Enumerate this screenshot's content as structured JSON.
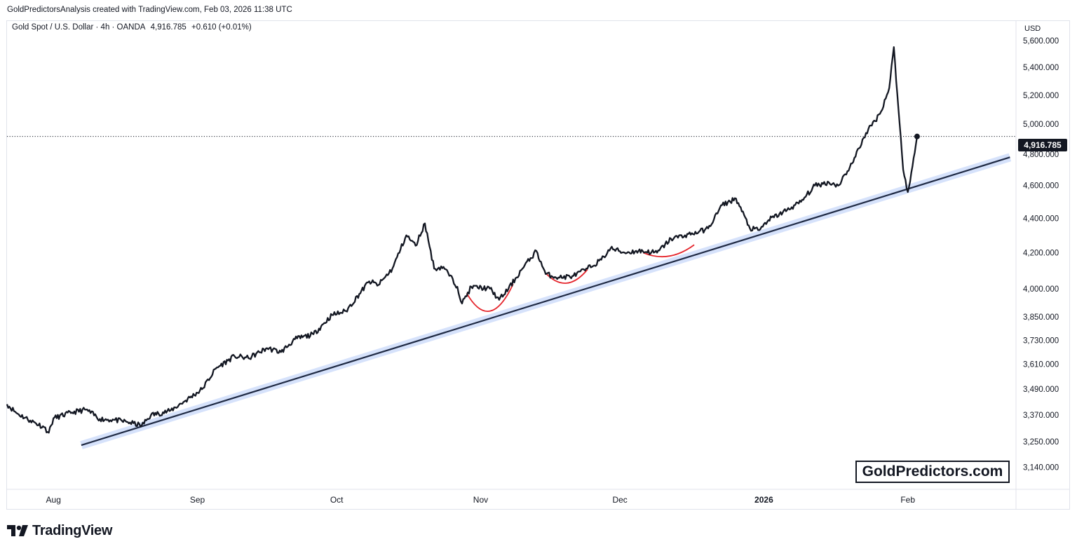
{
  "header": {
    "attribution": "GoldPredictorsAnalysis created with TradingView.com, Feb 03, 2026 11:38 UTC"
  },
  "legend": {
    "symbol": "Gold Spot / U.S. Dollar · 4h · OANDA",
    "last": "4,916.785",
    "change": "+0.610 (+0.01%)"
  },
  "currency": "USD",
  "last_price_label": "4,916.785",
  "watermark": "GoldPredictors.com",
  "footer": {
    "brand": "TradingView"
  },
  "colors": {
    "price_line": "#131722",
    "trend_line": "#1f2a44",
    "trend_band": "#d6e2fb",
    "arcs": "#e5262d"
  },
  "chart_data": {
    "type": "line",
    "title": "Gold Spot / U.S. Dollar · 4h · OANDA",
    "y_scale": "log",
    "ylim": [
      3050,
      5750
    ],
    "y_ticks": [
      "5,600.000",
      "5,400.000",
      "5,200.000",
      "5,000.000",
      "4,800.000",
      "4,600.000",
      "4,400.000",
      "4,200.000",
      "4,000.000",
      "3,850.000",
      "3,730.000",
      "3,610.000",
      "3,490.000",
      "3,370.000",
      "3,250.000",
      "3,140.000"
    ],
    "x_ticks": [
      "Aug",
      "Sep",
      "Oct",
      "Nov",
      "Dec",
      "2026",
      "Feb"
    ],
    "x_tick_dates": [
      "2025-08-01",
      "2025-09-01",
      "2025-10-01",
      "2025-11-01",
      "2025-12-01",
      "2026-01-01",
      "2026-02-01"
    ],
    "xlim": [
      "2025-07-22",
      "2026-02-24"
    ],
    "grid": false,
    "series": [
      {
        "type": "line",
        "points": [
          [
            "2025-07-22",
            3420
          ],
          [
            "2025-07-24",
            3380
          ],
          [
            "2025-07-27",
            3345
          ],
          [
            "2025-07-30",
            3315
          ],
          [
            "2025-07-31",
            3290
          ],
          [
            "2025-08-01",
            3355
          ],
          [
            "2025-08-05",
            3382
          ],
          [
            "2025-08-08",
            3395
          ],
          [
            "2025-08-11",
            3352
          ],
          [
            "2025-08-14",
            3348
          ],
          [
            "2025-08-17",
            3338
          ],
          [
            "2025-08-20",
            3322
          ],
          [
            "2025-08-22",
            3370
          ],
          [
            "2025-08-26",
            3388
          ],
          [
            "2025-08-29",
            3430
          ],
          [
            "2025-09-02",
            3490
          ],
          [
            "2025-09-05",
            3590
          ],
          [
            "2025-09-09",
            3650
          ],
          [
            "2025-09-12",
            3640
          ],
          [
            "2025-09-16",
            3690
          ],
          [
            "2025-09-19",
            3670
          ],
          [
            "2025-09-22",
            3735
          ],
          [
            "2025-09-26",
            3760
          ],
          [
            "2025-09-30",
            3860
          ],
          [
            "2025-10-03",
            3880
          ],
          [
            "2025-10-08",
            4040
          ],
          [
            "2025-10-10",
            4020
          ],
          [
            "2025-10-13",
            4110
          ],
          [
            "2025-10-16",
            4300
          ],
          [
            "2025-10-18",
            4240
          ],
          [
            "2025-10-20",
            4370
          ],
          [
            "2025-10-22",
            4110
          ],
          [
            "2025-10-24",
            4120
          ],
          [
            "2025-10-27",
            4010
          ],
          [
            "2025-10-28",
            3920
          ],
          [
            "2025-10-30",
            4010
          ],
          [
            "2025-11-03",
            4000
          ],
          [
            "2025-11-05",
            3940
          ],
          [
            "2025-11-07",
            4000
          ],
          [
            "2025-11-10",
            4110
          ],
          [
            "2025-11-13",
            4210
          ],
          [
            "2025-11-15",
            4080
          ],
          [
            "2025-11-18",
            4060
          ],
          [
            "2025-11-21",
            4070
          ],
          [
            "2025-11-24",
            4110
          ],
          [
            "2025-11-27",
            4160
          ],
          [
            "2025-11-29",
            4225
          ],
          [
            "2025-12-02",
            4200
          ],
          [
            "2025-12-05",
            4210
          ],
          [
            "2025-12-09",
            4200
          ],
          [
            "2025-12-12",
            4280
          ],
          [
            "2025-12-15",
            4300
          ],
          [
            "2025-12-18",
            4320
          ],
          [
            "2025-12-20",
            4340
          ],
          [
            "2025-12-23",
            4480
          ],
          [
            "2025-12-26",
            4520
          ],
          [
            "2025-12-29",
            4340
          ],
          [
            "2025-12-31",
            4330
          ],
          [
            "2026-01-02",
            4390
          ],
          [
            "2026-01-06",
            4450
          ],
          [
            "2026-01-09",
            4500
          ],
          [
            "2026-01-12",
            4600
          ],
          [
            "2026-01-15",
            4620
          ],
          [
            "2026-01-17",
            4600
          ],
          [
            "2026-01-20",
            4740
          ],
          [
            "2026-01-23",
            4940
          ],
          [
            "2026-01-26",
            5070
          ],
          [
            "2026-01-28",
            5250
          ],
          [
            "2026-01-29",
            5550
          ],
          [
            "2026-01-30",
            5100
          ],
          [
            "2026-01-31",
            4700
          ],
          [
            "2026-02-01",
            4560
          ],
          [
            "2026-02-02",
            4720
          ],
          [
            "2026-02-03",
            4916.785
          ]
        ]
      }
    ],
    "trend_line": {
      "from": [
        "2025-08-07",
        3235
      ],
      "to": [
        "2026-02-23",
        4780
      ]
    },
    "annotations": [
      {
        "type": "arc",
        "from": [
          "2025-10-29",
          3975
        ],
        "to": [
          "2025-11-08",
          4025
        ],
        "bottom": 3880
      },
      {
        "type": "arc",
        "from": [
          "2025-11-15",
          4085
        ],
        "to": [
          "2025-11-24",
          4105
        ],
        "bottom": 4030
      },
      {
        "type": "arc",
        "from": [
          "2025-12-06",
          4200
        ],
        "to": [
          "2025-12-17",
          4245
        ],
        "bottom": 4180
      }
    ],
    "last_price": 4916.785
  }
}
